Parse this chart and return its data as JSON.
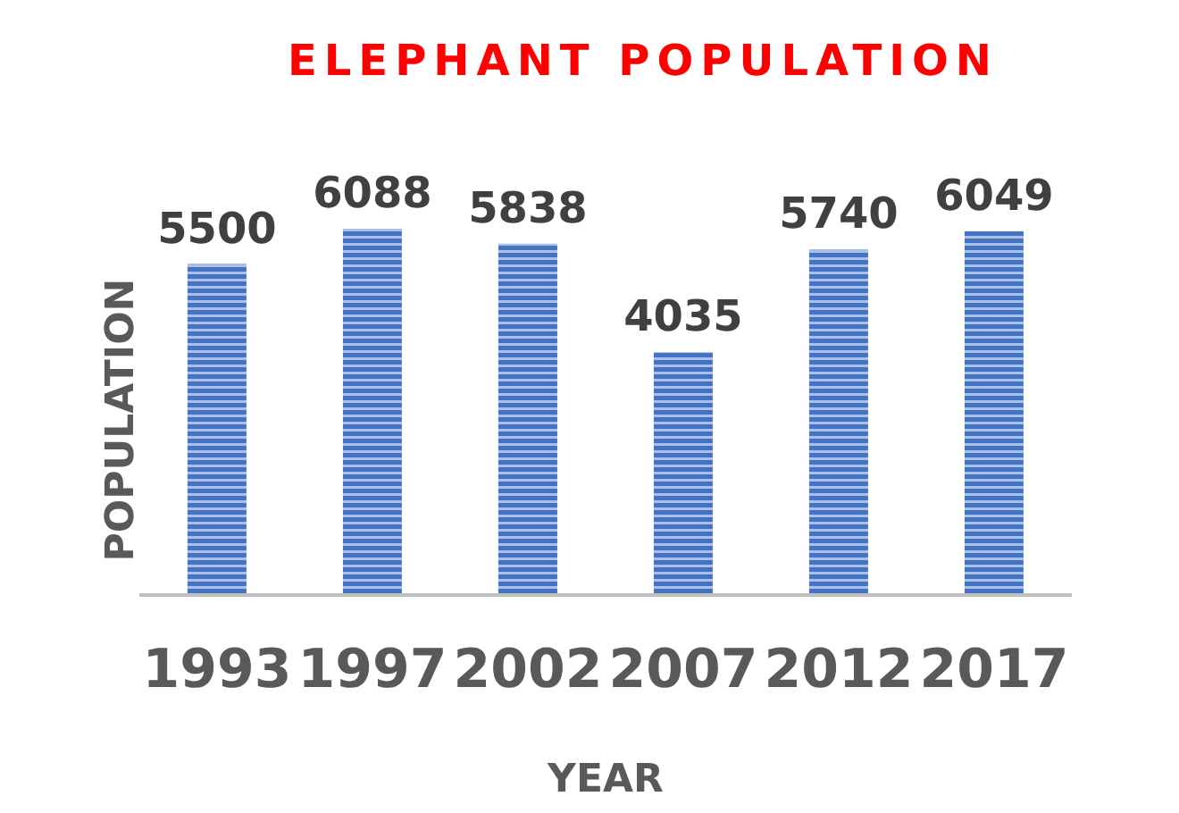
{
  "chart_data": {
    "type": "bar",
    "title": "ELEPHANT POPULATION",
    "xlabel": "YEAR",
    "ylabel": "POPULATION",
    "categories": [
      "1993",
      "1997",
      "2002",
      "2007",
      "2012",
      "2017"
    ],
    "values": [
      5500,
      6088,
      5838,
      4035,
      5740,
      6049
    ],
    "color": "#4472c4",
    "data_labels": true,
    "grid": false,
    "legend": false
  }
}
